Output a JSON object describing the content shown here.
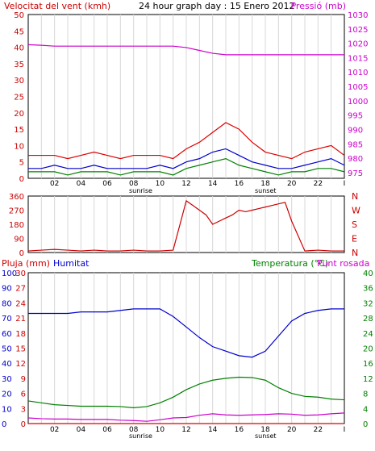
{
  "chart_data": [
    {
      "type": "line",
      "title": "24 hour graph day : 15 Enero 2012",
      "left_axis_label": "Velocitat del vent (kmh)",
      "right_axis_label": "Pressió (mb)",
      "ylim": [
        0,
        50
      ],
      "y2lim": [
        973,
        1030
      ],
      "y_ticks": [
        "0",
        "5",
        "10",
        "15",
        "20",
        "25",
        "30",
        "35",
        "40",
        "45",
        "50"
      ],
      "y2_ticks": [
        "975",
        "980",
        "985",
        "990",
        "995",
        "1000",
        "1005",
        "1010",
        "1015",
        "1020",
        "1025",
        "1030"
      ],
      "x_ticks": [
        "02",
        "04",
        "06",
        "08",
        "10",
        "12",
        "14",
        "16",
        "18",
        "20",
        "22",
        "I"
      ],
      "markers": {
        "sunrise_hour": 8.3,
        "sunset_hour": 17.7,
        "sunrise_label": "sunrise",
        "sunset_label": "sunset"
      },
      "x_hours": [
        0,
        1,
        2,
        3,
        4,
        5,
        6,
        7,
        8,
        9,
        10,
        11,
        12,
        13,
        14,
        15,
        16,
        17,
        18,
        19,
        20,
        21,
        22,
        23,
        24
      ],
      "series": [
        {
          "name": "gust",
          "color": "#dd0000",
          "values": [
            7,
            7,
            7,
            6,
            7,
            8,
            7,
            6,
            7,
            7,
            7,
            6,
            9,
            11,
            14,
            17,
            15,
            11,
            8,
            7,
            6,
            8,
            9,
            10,
            7
          ]
        },
        {
          "name": "avg",
          "color": "#0000cc",
          "values": [
            3,
            3,
            4,
            3,
            3,
            4,
            3,
            3,
            3,
            3,
            4,
            3,
            5,
            6,
            8,
            9,
            7,
            5,
            4,
            3,
            3,
            4,
            5,
            6,
            4
          ]
        },
        {
          "name": "dir_avg",
          "color": "#008000",
          "values": [
            2,
            2,
            2,
            1,
            2,
            2,
            2,
            1,
            2,
            2,
            2,
            1,
            3,
            4,
            5,
            6,
            4,
            3,
            2,
            1,
            2,
            2,
            3,
            3,
            2
          ]
        },
        {
          "name": "pressure",
          "color": "#cc00cc",
          "axis": "y2",
          "values": [
            1019.5,
            1019.3,
            1019,
            1019,
            1019,
            1019,
            1019,
            1019,
            1019,
            1019,
            1019,
            1019,
            1018.5,
            1017.5,
            1016.5,
            1016,
            1016,
            1016,
            1016,
            1016,
            1016,
            1016,
            1016,
            1016,
            1016
          ]
        }
      ]
    },
    {
      "type": "scatter",
      "title": "",
      "ylim": [
        0,
        360
      ],
      "y_ticks": [
        "0",
        "90",
        "180",
        "270",
        "360"
      ],
      "compass_labels": [
        "N",
        "W",
        "S",
        "E",
        "N"
      ],
      "x_hours": [
        0,
        1,
        2,
        3,
        4,
        5,
        6,
        7,
        8,
        9,
        10,
        11,
        12,
        12.5,
        13,
        13.5,
        14,
        14.5,
        15,
        15.5,
        16,
        16.5,
        17,
        17.5,
        18,
        18.5,
        19,
        19.5,
        20,
        21,
        22,
        23,
        24
      ],
      "series": [
        {
          "name": "wind_direction",
          "color": "#cc0000",
          "values": [
            10,
            15,
            20,
            15,
            10,
            15,
            10,
            10,
            15,
            10,
            10,
            15,
            330,
            300,
            270,
            240,
            180,
            200,
            220,
            240,
            270,
            260,
            270,
            280,
            290,
            300,
            310,
            320,
            200,
            10,
            15,
            10,
            10
          ]
        }
      ]
    },
    {
      "type": "line",
      "left_axis_label": "Pluja (mm)",
      "left_axis2_label": "Humitat",
      "right_axis_label": "Temperatura (°C)",
      "right_axis2_label": "Punt rosada",
      "ylim_rain": [
        0,
        30
      ],
      "ylim_humidity": [
        0,
        100
      ],
      "ylim_temp": [
        0,
        40
      ],
      "rain_ticks": [
        "0",
        "3",
        "6",
        "9",
        "12",
        "15",
        "18",
        "21",
        "24",
        "27",
        "30"
      ],
      "humidity_ticks": [
        "0",
        "10",
        "20",
        "30",
        "40",
        "50",
        "60",
        "70",
        "80",
        "90",
        "100"
      ],
      "temp_ticks": [
        "0",
        "4",
        "8",
        "12",
        "16",
        "20",
        "24",
        "28",
        "32",
        "36",
        "40"
      ],
      "x_ticks": [
        "02",
        "04",
        "06",
        "08",
        "10",
        "12",
        "14",
        "16",
        "18",
        "20",
        "22",
        "I"
      ],
      "markers": {
        "sunrise_hour": 8.3,
        "sunset_hour": 17.7,
        "sunrise_label": "sunrise",
        "sunset_label": "sunset"
      },
      "x_hours": [
        0,
        1,
        2,
        3,
        4,
        5,
        6,
        7,
        8,
        9,
        10,
        11,
        12,
        13,
        14,
        15,
        16,
        17,
        18,
        19,
        20,
        21,
        22,
        23,
        24
      ],
      "series": [
        {
          "name": "humitat",
          "color": "#0000cc",
          "axis": "humidity",
          "values": [
            73,
            73,
            73,
            73,
            74,
            74,
            74,
            75,
            76,
            76,
            76,
            71,
            64,
            57,
            51,
            48,
            45,
            44,
            48,
            58,
            68,
            73,
            75,
            76,
            76
          ]
        },
        {
          "name": "temperatura",
          "color": "#008000",
          "axis": "temp",
          "values": [
            6,
            5.5,
            5,
            4.8,
            4.6,
            4.6,
            4.6,
            4.5,
            4.2,
            4.5,
            5.5,
            7,
            9,
            10.5,
            11.5,
            12,
            12.3,
            12.2,
            11.5,
            9.5,
            8,
            7.2,
            7,
            6.5,
            6.3
          ]
        },
        {
          "name": "punt_rosada",
          "color": "#cc00cc",
          "axis": "temp",
          "values": [
            1.5,
            1.3,
            1.2,
            1.2,
            1.1,
            1.1,
            1.1,
            0.9,
            0.8,
            0.6,
            1,
            1.5,
            1.6,
            2.2,
            2.6,
            2.3,
            2.2,
            2.3,
            2.4,
            2.6,
            2.5,
            2.2,
            2.3,
            2.6,
            2.8
          ]
        },
        {
          "name": "pluja",
          "color": "#dd0000",
          "axis": "rain",
          "values": [
            0,
            0,
            0,
            0,
            0,
            0,
            0,
            0,
            0,
            0,
            0,
            0,
            0,
            0,
            0,
            0,
            0,
            0,
            0,
            0,
            0,
            0,
            0,
            0,
            0
          ]
        }
      ]
    }
  ]
}
